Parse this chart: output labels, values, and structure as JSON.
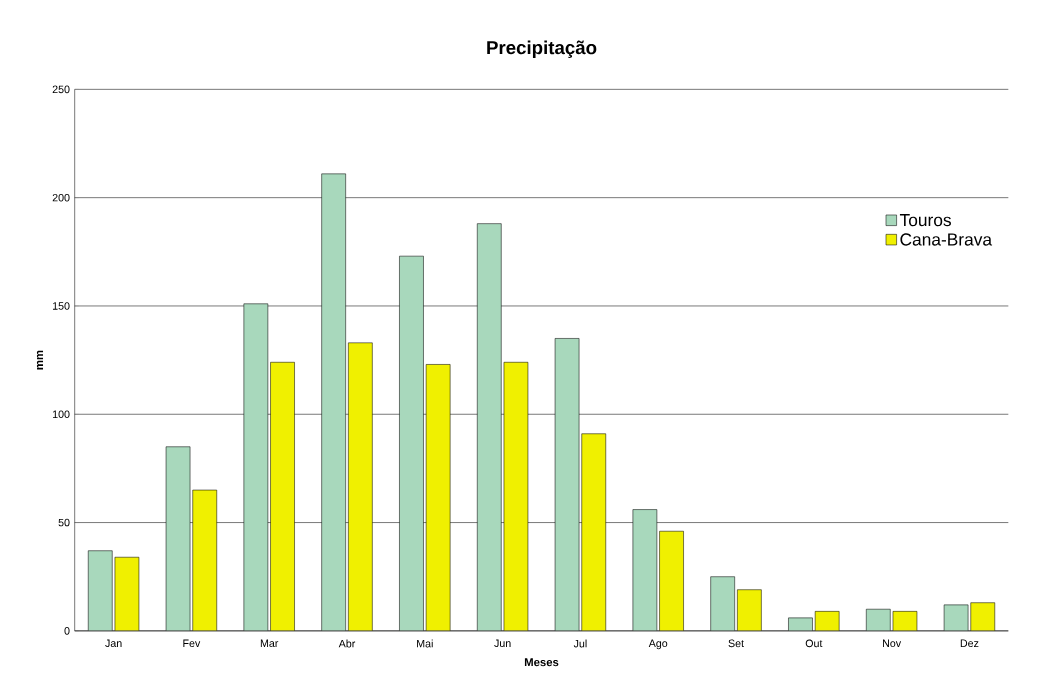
{
  "chart_data": {
    "type": "bar",
    "title": "Precipitação",
    "xlabel": "Meses",
    "ylabel": "mm",
    "categories": [
      "Jan",
      "Fev",
      "Mar",
      "Abr",
      "Mai",
      "Jun",
      "Jul",
      "Ago",
      "Set",
      "Out",
      "Nov",
      "Dez"
    ],
    "series": [
      {
        "name": "Touros",
        "color": "#a8d8bc",
        "values": [
          37,
          85,
          151,
          211,
          173,
          188,
          135,
          56,
          25,
          6,
          10,
          12
        ]
      },
      {
        "name": "Cana-Brava",
        "color": "#f0f000",
        "values": [
          34,
          65,
          124,
          133,
          123,
          124,
          91,
          46,
          19,
          9,
          9,
          13
        ]
      }
    ],
    "ylim": [
      0,
      250
    ],
    "yticks": [
      0,
      50,
      100,
      150,
      200,
      250
    ],
    "grid": "y",
    "legend": "right"
  }
}
